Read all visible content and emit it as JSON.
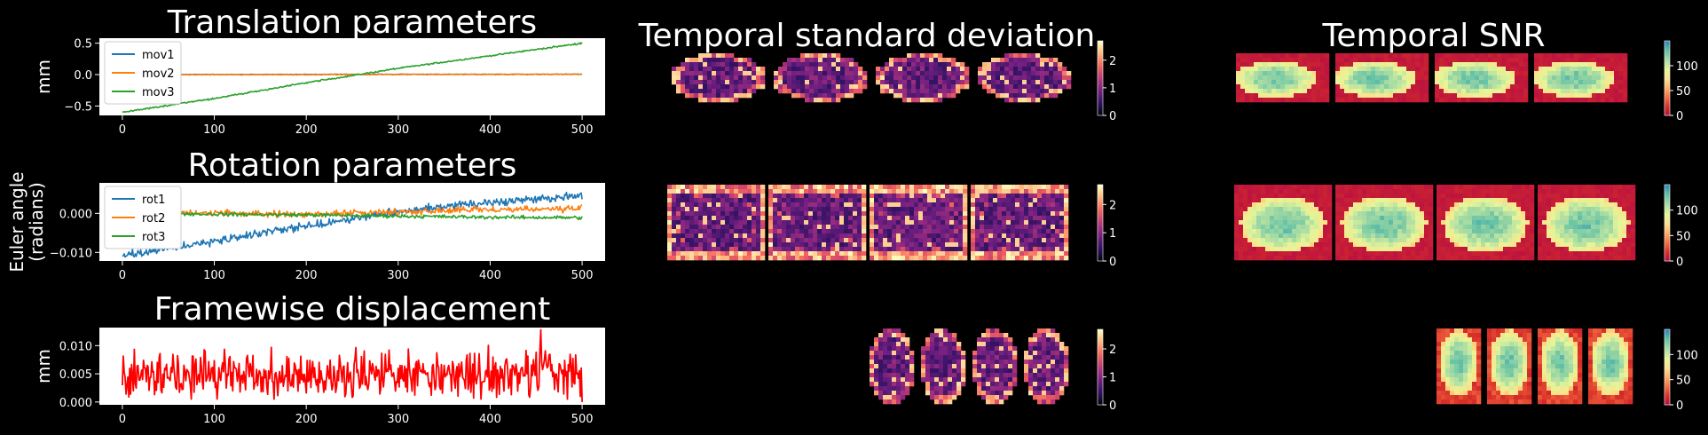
{
  "chart_data": [
    {
      "type": "line",
      "title": "Translation parameters",
      "ylabel": "mm",
      "xlim": [
        -25,
        525
      ],
      "ylim": [
        -0.65,
        0.58
      ],
      "xticks": [
        "0",
        "100",
        "200",
        "300",
        "400",
        "500"
      ],
      "yticks": [
        "0.5",
        "0.0",
        "−0.5"
      ],
      "ytick_values": [
        0.5,
        0.0,
        -0.5
      ],
      "legend": "top-left",
      "series": [
        {
          "name": "mov1",
          "color": "#1f77b4",
          "x": [
            0,
            100,
            200,
            300,
            400,
            500
          ],
          "values": [
            0.0,
            0.002,
            0.003,
            0.004,
            0.005,
            0.006
          ],
          "noise": 0.004
        },
        {
          "name": "mov2",
          "color": "#ff7f0e",
          "x": [
            0,
            100,
            200,
            300,
            400,
            500
          ],
          "values": [
            0.0,
            -0.001,
            0.0,
            0.002,
            0.003,
            0.004
          ],
          "noise": 0.006
        },
        {
          "name": "mov3",
          "color": "#2ca02c",
          "x": [
            0,
            100,
            200,
            300,
            400,
            500
          ],
          "values": [
            -0.6,
            -0.38,
            -0.13,
            0.1,
            0.3,
            0.5
          ],
          "noise": 0.01
        }
      ]
    },
    {
      "type": "line",
      "title": "Rotation parameters",
      "ylabel": "Euler angle\n(radians)",
      "xlim": [
        -25,
        525
      ],
      "ylim": [
        -0.0122,
        0.0078
      ],
      "xticks": [
        "0",
        "100",
        "200",
        "300",
        "400",
        "500"
      ],
      "yticks": [
        "0.000",
        "−0.010"
      ],
      "ytick_values": [
        0.0,
        -0.01
      ],
      "legend": "top-left",
      "series": [
        {
          "name": "rot1",
          "color": "#1f77b4",
          "x": [
            0,
            100,
            200,
            300,
            400,
            500
          ],
          "values": [
            -0.0108,
            -0.0072,
            -0.0032,
            0.0005,
            0.0028,
            0.0045
          ],
          "noise": 0.0009
        },
        {
          "name": "rot2",
          "color": "#ff7f0e",
          "x": [
            0,
            100,
            200,
            300,
            400,
            500
          ],
          "values": [
            0.0,
            0.0002,
            -0.0003,
            0.0004,
            0.001,
            0.0012
          ],
          "noise": 0.0007
        },
        {
          "name": "rot3",
          "color": "#2ca02c",
          "x": [
            0,
            100,
            200,
            300,
            400,
            500
          ],
          "values": [
            0.0,
            -0.0002,
            -0.0004,
            -0.0007,
            -0.001,
            -0.0011
          ],
          "noise": 0.0004
        }
      ]
    },
    {
      "type": "line",
      "title": "Framewise displacement",
      "ylabel": "mm",
      "xlim": [
        -25,
        525
      ],
      "ylim": [
        -0.0005,
        0.0132
      ],
      "xticks": [
        "0",
        "100",
        "200",
        "300",
        "400",
        "500"
      ],
      "yticks": [
        "0.010",
        "0.005",
        "0.000"
      ],
      "ytick_values": [
        0.01,
        0.005,
        0.0
      ],
      "series": [
        {
          "name": "",
          "color": "#ff0000",
          "x": [
            0,
            100,
            200,
            300,
            400,
            500
          ],
          "values": [
            0.005,
            0.005,
            0.005,
            0.005,
            0.005,
            0.005
          ],
          "noise": 0.0035,
          "peak": [
            455,
            0.0128
          ],
          "end": 0.0
        }
      ]
    }
  ],
  "maps": [
    {
      "title": "Temporal standard deviation",
      "colormap": "magma",
      "colorbar_ticks": [
        "2",
        "1",
        "0"
      ],
      "colorbar_values": [
        2,
        1,
        0
      ],
      "vmax": 2.7
    },
    {
      "title": "Temporal SNR",
      "colormap": "spectral",
      "colorbar_ticks": [
        "100",
        "50",
        "0"
      ],
      "colorbar_values": [
        100,
        50,
        0
      ],
      "vmax": 150
    }
  ],
  "colors": {
    "background": "#000000",
    "axes_face": "#ffffff",
    "text": "#ffffff"
  }
}
